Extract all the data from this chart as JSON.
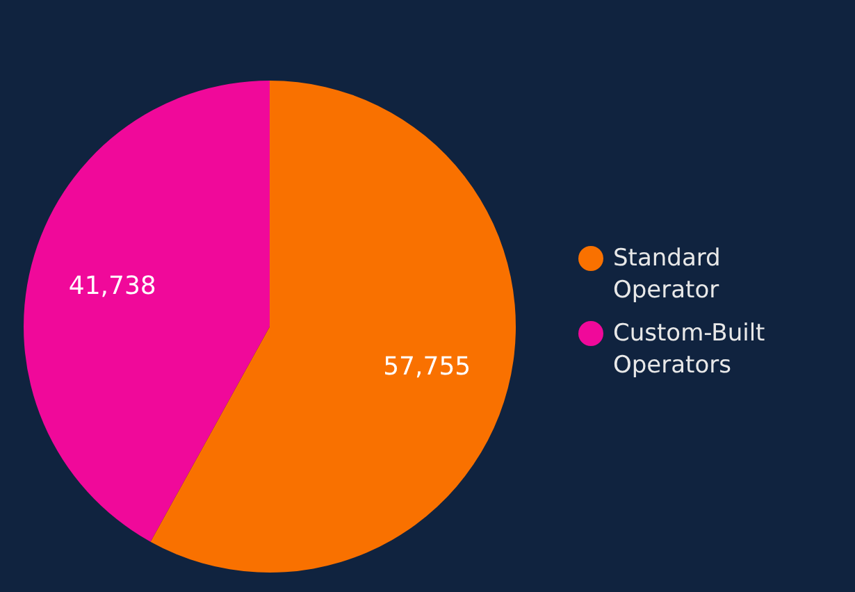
{
  "chart_data": {
    "type": "pie",
    "categories": [
      "Standard Operator",
      "Custom-Built Operators"
    ],
    "values": [
      57755,
      41738
    ],
    "value_labels": [
      "57,755",
      "41,738"
    ],
    "colors": [
      "#f97100",
      "#f0099a"
    ],
    "legend": "right"
  }
}
